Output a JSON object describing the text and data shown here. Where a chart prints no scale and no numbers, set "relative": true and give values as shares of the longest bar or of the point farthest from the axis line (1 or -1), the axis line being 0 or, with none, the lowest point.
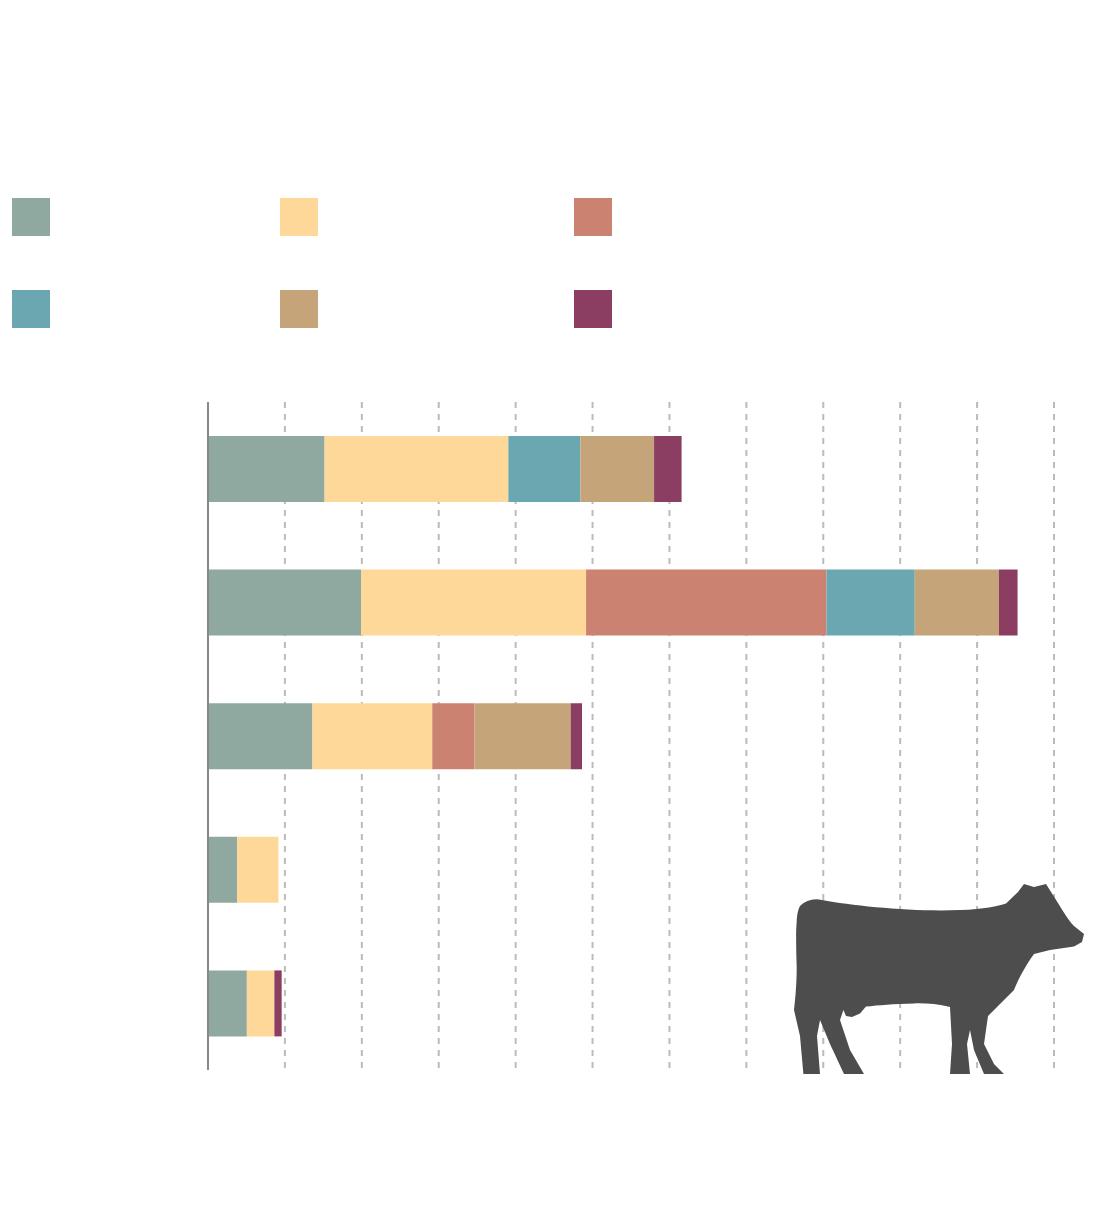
{
  "chart_data": {
    "type": "bar",
    "orientation": "horizontal",
    "stacked": true,
    "relative": true,
    "categories": [
      null,
      null,
      null,
      null,
      null
    ],
    "series": [
      {
        "color": "#8fa8a0",
        "values": [
          0.144,
          0.189,
          0.129,
          0.036,
          0.048
        ]
      },
      {
        "color": "#fed898",
        "values": [
          0.227,
          0.278,
          0.148,
          0.051,
          0.034
        ]
      },
      {
        "color": "#cc8270",
        "values": [
          0,
          0.297,
          0.052,
          0,
          0
        ]
      },
      {
        "color": "#6aa7b1",
        "values": [
          0.089,
          0.109,
          0,
          0,
          0
        ]
      },
      {
        "color": "#c6a479",
        "values": [
          0.091,
          0.104,
          0.119,
          0,
          0
        ]
      },
      {
        "color": "#8b3e62",
        "values": [
          0.034,
          0.023,
          0.014,
          0,
          0.009
        ]
      }
    ],
    "grid": "x"
  }
}
